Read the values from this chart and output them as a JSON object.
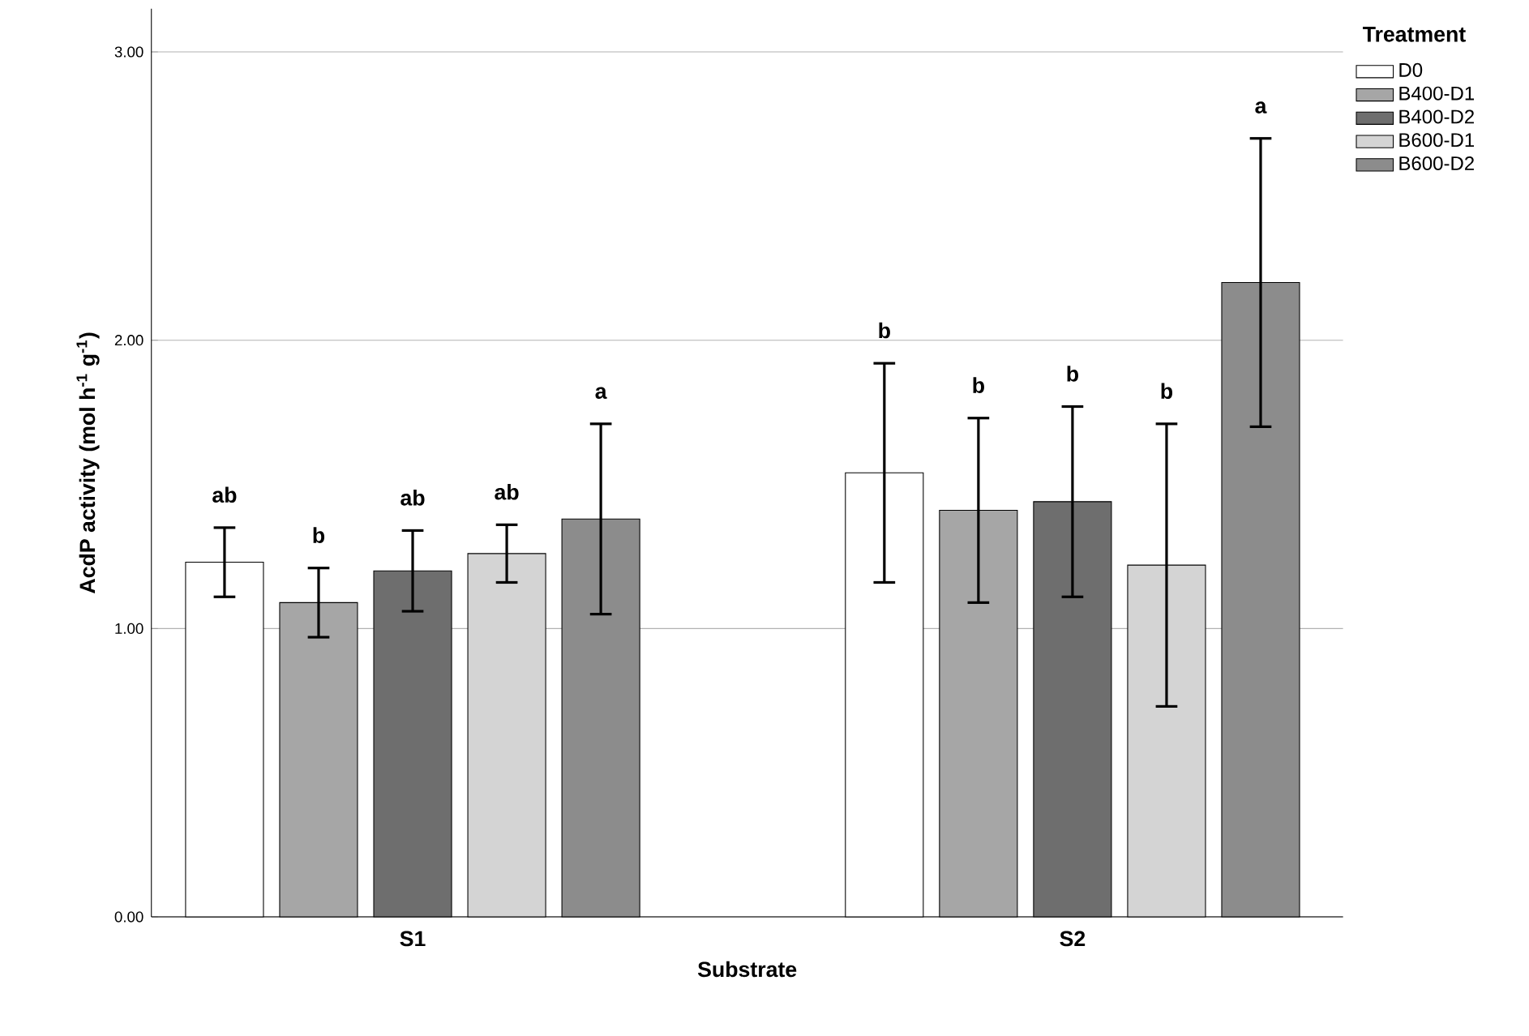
{
  "chart_data": {
    "type": "bar",
    "xlabel": "Substrate",
    "ylabel": "AcdP activity (mol h$^{-1}$ g$^{-1}$)",
    "legend_title": "Treatment",
    "categories": [
      "S1",
      "S2"
    ],
    "series": [
      {
        "name": "D0",
        "color": "#ffffff",
        "values": [
          1.23,
          1.54
        ],
        "errors": [
          0.12,
          0.38
        ]
      },
      {
        "name": "B400-D1",
        "color": "#a6a6a6",
        "values": [
          1.09,
          1.41
        ],
        "errors": [
          0.12,
          0.32
        ]
      },
      {
        "name": "B400-D2",
        "color": "#6e6e6e",
        "values": [
          1.2,
          1.44
        ],
        "errors": [
          0.14,
          0.33
        ]
      },
      {
        "name": "B600-D1",
        "color": "#d4d4d4",
        "values": [
          1.26,
          1.22
        ],
        "errors": [
          0.1,
          0.49
        ]
      },
      {
        "name": "B600-D2",
        "color": "#8c8c8c",
        "values": [
          1.38,
          2.2
        ],
        "errors": [
          0.33,
          0.5
        ]
      }
    ],
    "annotations": [
      "ab",
      "b",
      "ab",
      "ab",
      "a",
      "b",
      "b",
      "b",
      "b",
      "a"
    ],
    "ylim": [
      0,
      3.15
    ],
    "yticks": [
      {
        "value": 0,
        "label": "0.00"
      },
      {
        "value": 1,
        "label": "1.00"
      },
      {
        "value": 2,
        "label": "2.00"
      },
      {
        "value": 3,
        "label": "3.00"
      }
    ],
    "grid": "y",
    "legend": "top right"
  }
}
